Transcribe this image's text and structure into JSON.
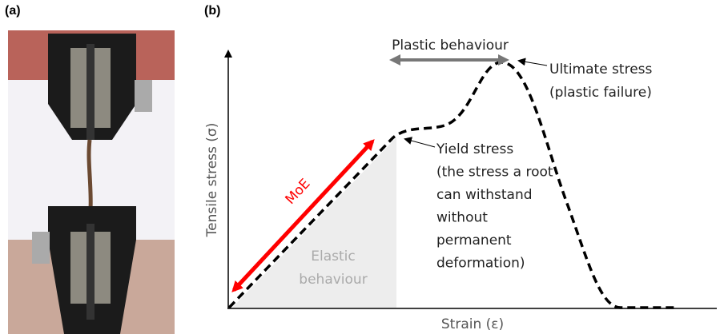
{
  "panel_a": {
    "label": "(a)"
  },
  "panel_b": {
    "label": "(b)",
    "y_axis_label": "Tensile stress (σ)",
    "x_axis_label": "Strain (ε)",
    "plastic_label": "Plastic behaviour",
    "ultimate_label": [
      "Ultimate stress",
      "(plastic failure)"
    ],
    "yield_label": [
      "Yield stress",
      "(the stress a root",
      "can withstand",
      "without",
      "permanent",
      "deformation)"
    ],
    "moe_label": "MoE",
    "elastic_label": [
      "Elastic",
      "behaviour"
    ]
  }
}
